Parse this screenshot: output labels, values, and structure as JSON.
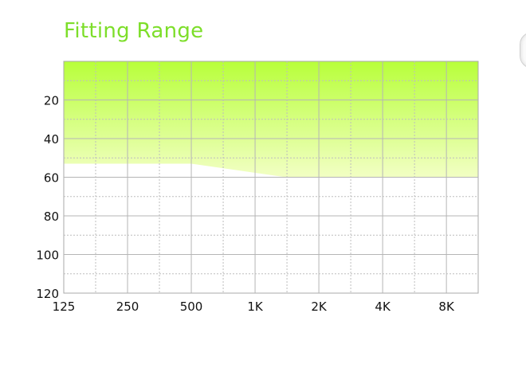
{
  "chart_data": {
    "type": "area",
    "title": "Fitting Range",
    "xlabel": "",
    "ylabel": "",
    "x_scale": "log2",
    "x_ticks": [
      "125",
      "250",
      "500",
      "1K",
      "2K",
      "4K",
      "8K"
    ],
    "x_tick_values": [
      125,
      250,
      500,
      1000,
      2000,
      4000,
      8000
    ],
    "xlim": [
      125,
      11300
    ],
    "y_ticks": [
      "20",
      "40",
      "60",
      "80",
      "100",
      "120"
    ],
    "y_tick_values": [
      20,
      40,
      60,
      80,
      100,
      120
    ],
    "ylim": [
      0,
      120
    ],
    "y_inverted": true,
    "grid": true,
    "legend": "none",
    "series": [
      {
        "x": [
          125,
          500,
          1400,
          11300
        ],
        "values": [
          53,
          53,
          60,
          60
        ],
        "color_top": "#b8ff3a",
        "color_bottom": "#f2ffc4"
      }
    ]
  }
}
